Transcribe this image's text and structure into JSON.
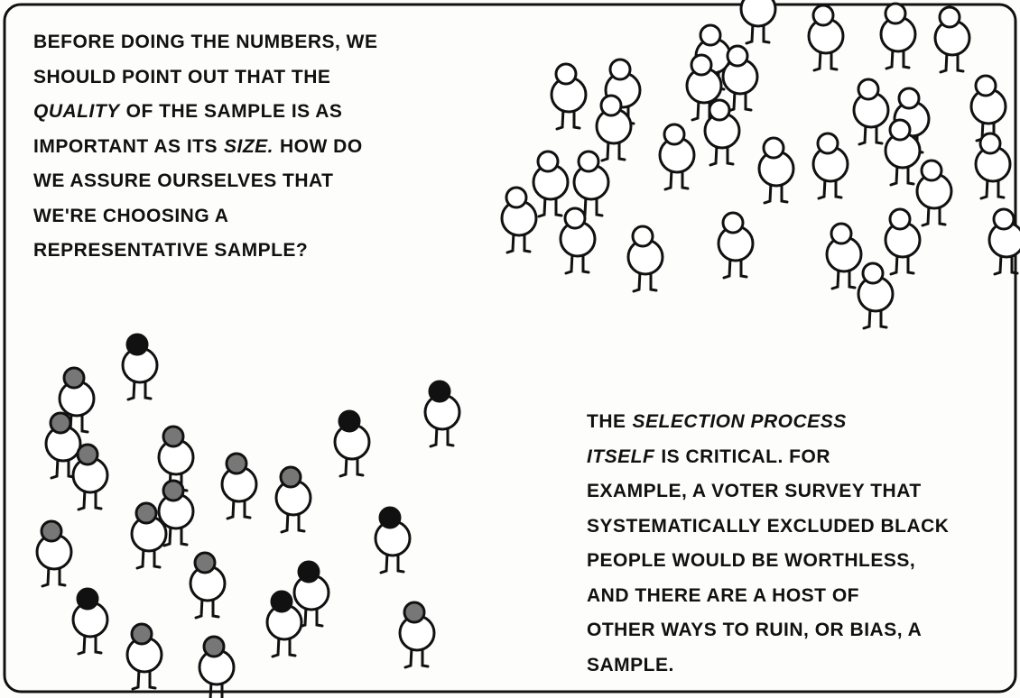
{
  "panel": {
    "caption_top": {
      "lines": [
        [
          "BEFORE DOING THE NUMBERS, WE"
        ],
        [
          "SHOULD POINT OUT THAT THE"
        ],
        [
          "QUALITY",
          "OF THE SAMPLE IS AS"
        ],
        [
          "IMPORTANT AS ITS",
          "SIZE.",
          "HOW DO"
        ],
        [
          "WE ASSURE OURSELVES THAT"
        ],
        [
          "WE'RE CHOOSING A"
        ],
        [
          "REPRESENTATIVE SAMPLE?"
        ]
      ]
    },
    "caption_bottom": {
      "lines": [
        [
          "THE",
          "SELECTION PROCESS"
        ],
        [
          "ITSELF",
          "IS CRITICAL. FOR"
        ],
        [
          "EXAMPLE, A VOTER SURVEY THAT"
        ],
        [
          "SYSTEMATICALLY EXCLUDED BLACK"
        ],
        [
          "PEOPLE WOULD BE WORTHLESS,"
        ],
        [
          "AND THERE ARE A HOST OF"
        ],
        [
          "OTHER WAYS TO RUIN, OR BIAS, A"
        ],
        [
          "SAMPLE."
        ]
      ]
    }
  }
}
